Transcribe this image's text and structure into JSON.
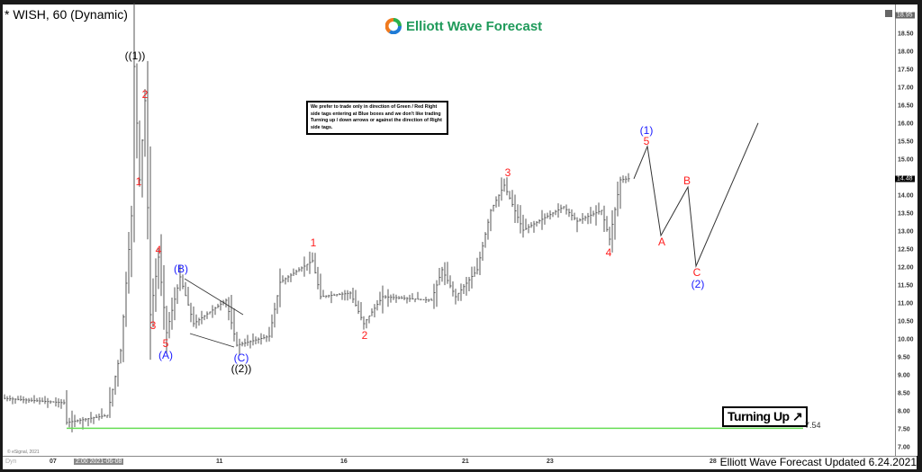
{
  "header": {
    "title": "* WISH, 60 (Dynamic)",
    "logo_text": "Elliott Wave Forecast"
  },
  "note": "We prefer to trade only in direction of Green / Red Right side tags entering at Blue boxes and we don't like trading Turning up / down arrows or against the direction of Right side tags.",
  "turning_label": "Turning Up",
  "level_label": "7.54",
  "footer": {
    "updated": "Elliott Wave Forecast Updated 6.24.2021",
    "copyright": "© eSignal, 2021",
    "cursor_time": "2:00 2021-06-08",
    "dyn": "Dyn"
  },
  "price_axis": {
    "ticks": [
      "18.50",
      "18.00",
      "17.50",
      "17.00",
      "16.50",
      "16.00",
      "15.50",
      "15.00",
      "14.00",
      "13.50",
      "13.00",
      "12.50",
      "12.00",
      "11.50",
      "11.00",
      "10.50",
      "10.00",
      "9.50",
      "9.00",
      "8.50",
      "8.00",
      "7.50",
      "7.00"
    ],
    "high_box": "18.95",
    "last_box": "14.48"
  },
  "date_axis": [
    "07",
    "11",
    "16",
    "21",
    "23",
    "28"
  ],
  "wave_labels": {
    "w1big": "((1))",
    "w2big": "((2))",
    "a": "(A)",
    "b": "(B)",
    "c": "(C)",
    "s1": "1",
    "s2": "2",
    "s3": "3",
    "s4": "4",
    "s5": "5",
    "r1": "1",
    "r2": "2",
    "r3": "3",
    "r4": "4",
    "r5": "5",
    "p1": "(1)",
    "pA": "A",
    "pB": "B",
    "pC": "C",
    "p2": "(2)"
  },
  "colors": {
    "bars": "#555555",
    "support": "#66dd55",
    "red_label": "#ff2020",
    "blue_label": "#1a1aff"
  },
  "chart_data": {
    "type": "ohlc-bar",
    "timeframe": "60",
    "symbol": "WISH",
    "ylim": [
      7.0,
      18.95
    ],
    "last_price": 14.48,
    "support_level": 7.54,
    "price_pivots": [
      [
        0,
        8.37
      ],
      [
        22,
        8.25
      ],
      [
        23,
        7.7
      ],
      [
        38,
        7.9
      ],
      [
        43,
        9.7
      ],
      [
        47,
        13.45
      ],
      [
        48,
        17.6
      ],
      [
        50,
        14.45
      ],
      [
        52,
        16.65
      ],
      [
        54,
        10.7
      ],
      [
        57,
        12.3
      ],
      [
        60,
        10.2
      ],
      [
        65,
        11.75
      ],
      [
        70,
        10.45
      ],
      [
        82,
        11.1
      ],
      [
        86,
        9.85
      ],
      [
        98,
        10.1
      ],
      [
        102,
        11.6
      ],
      [
        114,
        12.2
      ],
      [
        117,
        11.2
      ],
      [
        128,
        11.3
      ],
      [
        133,
        10.45
      ],
      [
        140,
        11.2
      ],
      [
        158,
        11.1
      ],
      [
        162,
        11.95
      ],
      [
        167,
        11.2
      ],
      [
        175,
        11.95
      ],
      [
        180,
        13.6
      ],
      [
        185,
        14.3
      ],
      [
        192,
        13.05
      ],
      [
        207,
        13.7
      ],
      [
        212,
        13.3
      ],
      [
        221,
        13.6
      ],
      [
        224,
        12.8
      ],
      [
        228,
        14.45
      ],
      [
        231,
        14.48
      ]
    ],
    "projection": [
      [
        233,
        14.48
      ],
      [
        238,
        15.38
      ],
      [
        243,
        12.9
      ],
      [
        253,
        14.25
      ],
      [
        256,
        12.05
      ],
      [
        279,
        16.03
      ]
    ]
  }
}
